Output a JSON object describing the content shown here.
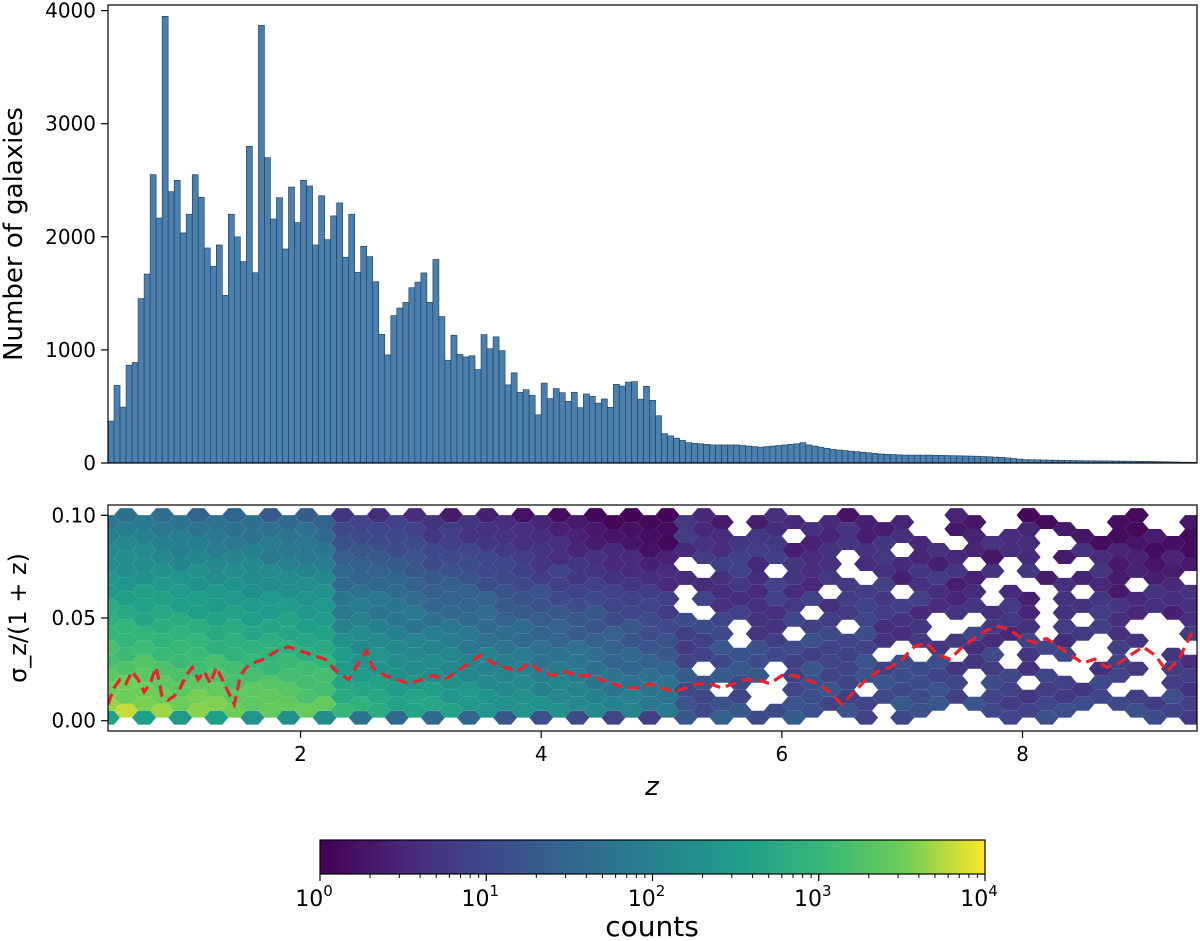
{
  "chart_data": [
    {
      "type": "bar",
      "panel": "top",
      "xlabel": "",
      "ylabel": "Number of galaxies",
      "xlim": [
        0.4,
        9.45
      ],
      "ylim": [
        0,
        4050
      ],
      "yticks": [
        "0",
        "1000",
        "2000",
        "3000",
        "4000"
      ],
      "ytick_values": [
        0,
        1000,
        2000,
        3000,
        4000
      ],
      "bar_color": "#4a7fae",
      "bar_edge": "#1f3a55",
      "bin_width": 0.05,
      "profile": [
        [
          0.4,
          350
        ],
        [
          0.45,
          620
        ],
        [
          0.5,
          540
        ],
        [
          0.55,
          760
        ],
        [
          0.6,
          920
        ],
        [
          0.65,
          1350
        ],
        [
          0.7,
          1530
        ],
        [
          0.75,
          1500
        ],
        [
          0.8,
          1900
        ],
        [
          0.85,
          1800
        ],
        [
          0.9,
          2000
        ],
        [
          0.95,
          2300
        ],
        [
          1.0,
          2100
        ],
        [
          1.1,
          1900
        ],
        [
          1.2,
          1800
        ],
        [
          1.3,
          1700
        ],
        [
          1.4,
          1650
        ],
        [
          1.5,
          1750
        ],
        [
          1.6,
          1950
        ],
        [
          1.7,
          2050
        ],
        [
          1.8,
          2100
        ],
        [
          1.9,
          2150
        ],
        [
          2.0,
          2150
        ],
        [
          2.1,
          2100
        ],
        [
          2.2,
          2050
        ],
        [
          2.3,
          2000
        ],
        [
          2.4,
          1850
        ],
        [
          2.5,
          1750
        ],
        [
          2.6,
          1650
        ],
        [
          2.65,
          1000
        ],
        [
          2.7,
          1050
        ],
        [
          2.8,
          1300
        ],
        [
          2.9,
          1550
        ],
        [
          3.0,
          1500
        ],
        [
          3.1,
          1250
        ],
        [
          3.2,
          1050
        ],
        [
          3.3,
          950
        ],
        [
          3.4,
          850
        ],
        [
          3.5,
          1000
        ],
        [
          3.6,
          1050
        ],
        [
          3.7,
          750
        ],
        [
          3.8,
          650
        ],
        [
          3.9,
          550
        ],
        [
          3.95,
          450
        ],
        [
          4.0,
          620
        ],
        [
          4.1,
          600
        ],
        [
          4.2,
          560
        ],
        [
          4.3,
          540
        ],
        [
          4.4,
          560
        ],
        [
          4.5,
          500
        ],
        [
          4.6,
          620
        ],
        [
          4.7,
          700
        ],
        [
          4.8,
          650
        ],
        [
          4.9,
          550
        ],
        [
          4.95,
          400
        ],
        [
          5.0,
          260
        ],
        [
          5.2,
          180
        ],
        [
          5.4,
          160
        ],
        [
          5.6,
          160
        ],
        [
          5.8,
          140
        ],
        [
          6.0,
          160
        ],
        [
          6.1,
          170
        ],
        [
          6.2,
          160
        ],
        [
          6.4,
          120
        ],
        [
          6.6,
          100
        ],
        [
          6.8,
          80
        ],
        [
          7.0,
          70
        ],
        [
          7.2,
          70
        ],
        [
          7.4,
          65
        ],
        [
          7.6,
          60
        ],
        [
          7.8,
          50
        ],
        [
          8.0,
          30
        ],
        [
          8.5,
          20
        ],
        [
          9.0,
          15
        ],
        [
          9.3,
          8
        ],
        [
          9.45,
          5
        ]
      ],
      "spikes": [
        [
          0.75,
          2550
        ],
        [
          0.85,
          3950
        ],
        [
          0.9,
          2400
        ],
        [
          0.95,
          2500
        ],
        [
          1.05,
          2200
        ],
        [
          1.1,
          2550
        ],
        [
          1.15,
          2350
        ],
        [
          1.4,
          2200
        ],
        [
          1.45,
          2000
        ],
        [
          1.55,
          2800
        ],
        [
          1.65,
          3870
        ],
        [
          1.7,
          2700
        ],
        [
          2.0,
          2500
        ],
        [
          2.05,
          2450
        ],
        [
          2.3,
          2300
        ],
        [
          2.4,
          2200
        ],
        [
          2.9,
          1550
        ],
        [
          2.95,
          1600
        ],
        [
          3.1,
          1800
        ],
        [
          4.75,
          720
        ],
        [
          6.15,
          180
        ]
      ]
    },
    {
      "type": "heatmap",
      "panel": "bottom",
      "xlabel": "z",
      "ylabel": "σ_z/(1 + z)",
      "xlim": [
        0.4,
        9.45
      ],
      "ylim": [
        -0.005,
        0.105
      ],
      "xticks": [
        "2",
        "4",
        "6",
        "8"
      ],
      "xtick_values": [
        2,
        4,
        6,
        8
      ],
      "yticks": [
        "0.00",
        "0.05",
        "0.10"
      ],
      "ytick_values": [
        0.0,
        0.05,
        0.1
      ],
      "hexbin_cmap": "viridis",
      "median_line": {
        "color": "#e8232b",
        "style": "dashed",
        "points": [
          [
            0.4,
            0.008
          ],
          [
            0.45,
            0.016
          ],
          [
            0.5,
            0.02
          ],
          [
            0.55,
            0.018
          ],
          [
            0.6,
            0.024
          ],
          [
            0.65,
            0.02
          ],
          [
            0.7,
            0.014
          ],
          [
            0.75,
            0.018
          ],
          [
            0.8,
            0.026
          ],
          [
            0.85,
            0.012
          ],
          [
            0.9,
            0.01
          ],
          [
            0.95,
            0.012
          ],
          [
            1.0,
            0.016
          ],
          [
            1.05,
            0.022
          ],
          [
            1.1,
            0.026
          ],
          [
            1.15,
            0.02
          ],
          [
            1.2,
            0.024
          ],
          [
            1.25,
            0.018
          ],
          [
            1.3,
            0.026
          ],
          [
            1.35,
            0.02
          ],
          [
            1.4,
            0.014
          ],
          [
            1.45,
            0.008
          ],
          [
            1.5,
            0.022
          ],
          [
            1.55,
            0.026
          ],
          [
            1.6,
            0.028
          ],
          [
            1.7,
            0.03
          ],
          [
            1.8,
            0.034
          ],
          [
            1.9,
            0.036
          ],
          [
            2.0,
            0.034
          ],
          [
            2.1,
            0.032
          ],
          [
            2.2,
            0.03
          ],
          [
            2.3,
            0.024
          ],
          [
            2.4,
            0.02
          ],
          [
            2.5,
            0.03
          ],
          [
            2.55,
            0.034
          ],
          [
            2.6,
            0.026
          ],
          [
            2.7,
            0.022
          ],
          [
            2.8,
            0.02
          ],
          [
            2.9,
            0.018
          ],
          [
            3.0,
            0.02
          ],
          [
            3.1,
            0.022
          ],
          [
            3.2,
            0.02
          ],
          [
            3.3,
            0.024
          ],
          [
            3.4,
            0.028
          ],
          [
            3.5,
            0.032
          ],
          [
            3.6,
            0.028
          ],
          [
            3.7,
            0.026
          ],
          [
            3.8,
            0.024
          ],
          [
            3.9,
            0.028
          ],
          [
            4.0,
            0.024
          ],
          [
            4.1,
            0.022
          ],
          [
            4.2,
            0.024
          ],
          [
            4.3,
            0.022
          ],
          [
            4.4,
            0.022
          ],
          [
            4.5,
            0.02
          ],
          [
            4.6,
            0.018
          ],
          [
            4.7,
            0.016
          ],
          [
            4.8,
            0.016
          ],
          [
            4.9,
            0.018
          ],
          [
            5.0,
            0.016
          ],
          [
            5.1,
            0.014
          ],
          [
            5.2,
            0.016
          ],
          [
            5.3,
            0.018
          ],
          [
            5.4,
            0.018
          ],
          [
            5.5,
            0.016
          ],
          [
            5.6,
            0.018
          ],
          [
            5.7,
            0.02
          ],
          [
            5.8,
            0.02
          ],
          [
            5.9,
            0.018
          ],
          [
            6.0,
            0.022
          ],
          [
            6.1,
            0.022
          ],
          [
            6.2,
            0.02
          ],
          [
            6.3,
            0.018
          ],
          [
            6.4,
            0.014
          ],
          [
            6.5,
            0.008
          ],
          [
            6.6,
            0.014
          ],
          [
            6.7,
            0.02
          ],
          [
            6.8,
            0.024
          ],
          [
            6.9,
            0.026
          ],
          [
            7.0,
            0.03
          ],
          [
            7.1,
            0.036
          ],
          [
            7.2,
            0.038
          ],
          [
            7.3,
            0.032
          ],
          [
            7.4,
            0.03
          ],
          [
            7.5,
            0.036
          ],
          [
            7.6,
            0.04
          ],
          [
            7.7,
            0.044
          ],
          [
            7.8,
            0.046
          ],
          [
            7.9,
            0.044
          ],
          [
            8.0,
            0.04
          ],
          [
            8.1,
            0.038
          ],
          [
            8.2,
            0.04
          ],
          [
            8.3,
            0.036
          ],
          [
            8.4,
            0.032
          ],
          [
            8.5,
            0.028
          ],
          [
            8.6,
            0.03
          ],
          [
            8.7,
            0.026
          ],
          [
            8.8,
            0.028
          ],
          [
            8.9,
            0.032
          ],
          [
            9.0,
            0.036
          ],
          [
            9.1,
            0.032
          ],
          [
            9.2,
            0.024
          ],
          [
            9.3,
            0.03
          ],
          [
            9.4,
            0.042
          ],
          [
            9.45,
            0.043
          ]
        ]
      }
    },
    {
      "type": "colorbar",
      "label": "counts",
      "scale": "log",
      "range": [
        1,
        10000
      ],
      "cmap": "viridis",
      "ticks": [
        {
          "base": "10",
          "exp": "0"
        },
        {
          "base": "10",
          "exp": "1"
        },
        {
          "base": "10",
          "exp": "2"
        },
        {
          "base": "10",
          "exp": "3"
        },
        {
          "base": "10",
          "exp": "4"
        }
      ]
    }
  ]
}
